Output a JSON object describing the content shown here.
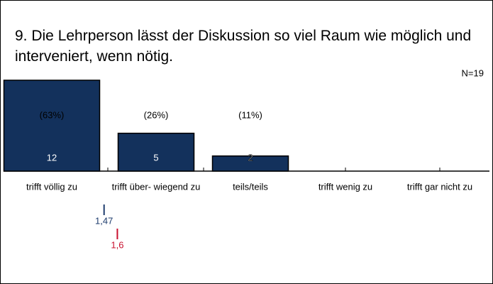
{
  "chart_data": {
    "type": "bar",
    "title": "9. Die Lehrperson lässt der Diskussion so viel Raum wie möglich und interveniert, wenn nötig.",
    "n_label": "N=19",
    "categories": [
      "trifft völlig zu",
      "trifft über- wiegend zu",
      "teils/teils",
      "trifft wenig zu",
      "trifft gar nicht zu"
    ],
    "values": [
      12,
      5,
      2,
      0,
      0
    ],
    "percentages": [
      63,
      26,
      11
    ],
    "percent_labels": [
      "(63%)",
      "(26%)",
      "(11%)"
    ],
    "color": "#13315c",
    "ylim": [
      0,
      12
    ],
    "means": [
      {
        "value": 1.47,
        "label": "1,47",
        "color": "#1f3d6e"
      },
      {
        "value": 1.6,
        "label": "1,6",
        "color": "#c8102e"
      }
    ]
  }
}
